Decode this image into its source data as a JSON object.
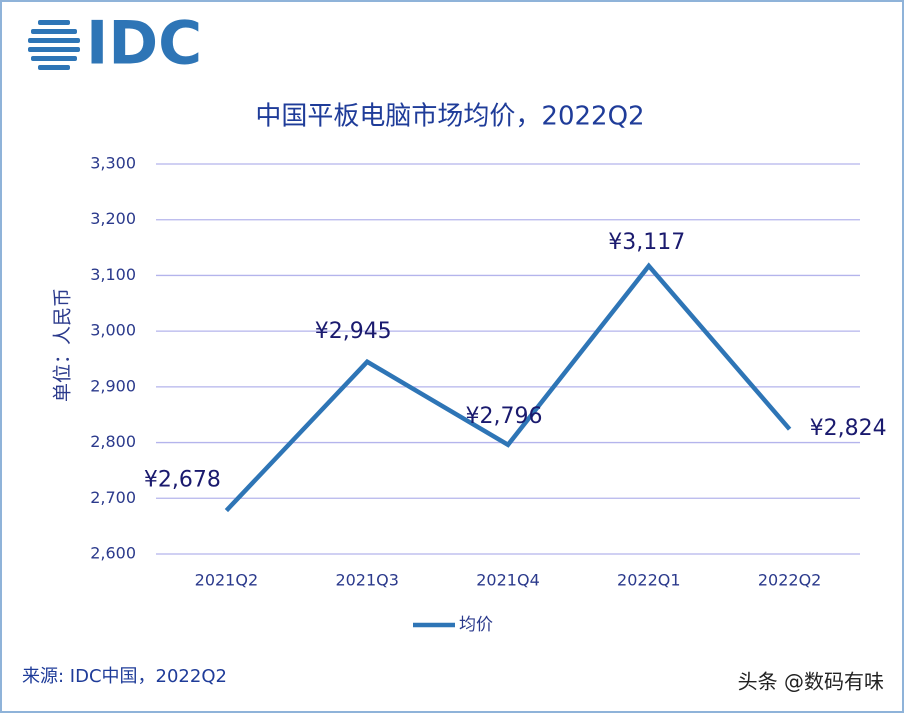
{
  "logo": "IDC",
  "chart_data": {
    "type": "line",
    "title": "中国平板电脑市场均价，2022Q2",
    "y_label": "单位：人民币",
    "categories": [
      "2021Q2",
      "2021Q3",
      "2021Q4",
      "2022Q1",
      "2022Q2"
    ],
    "series": [
      {
        "name": "均价",
        "color": "#2e75b6",
        "values": [
          2678,
          2945,
          2796,
          3117,
          2824
        ],
        "value_labels": [
          "¥2,678",
          "¥2,945",
          "¥2,796",
          "¥3,117",
          "¥2,824"
        ]
      }
    ],
    "ylim": [
      2600,
      3300
    ],
    "yticks": [
      {
        "value": 2600,
        "label": "2,600"
      },
      {
        "value": 2700,
        "label": "2,700"
      },
      {
        "value": 2800,
        "label": "2,800"
      },
      {
        "value": 2900,
        "label": "2,900"
      },
      {
        "value": 3000,
        "label": "3,000"
      },
      {
        "value": 3100,
        "label": "3,100"
      },
      {
        "value": 3200,
        "label": "3,200"
      },
      {
        "value": 3300,
        "label": "3,300"
      }
    ],
    "grid": true,
    "legend": "bottom"
  },
  "source": "来源: IDC中国，2022Q2",
  "watermark": "头条 @数码有味"
}
